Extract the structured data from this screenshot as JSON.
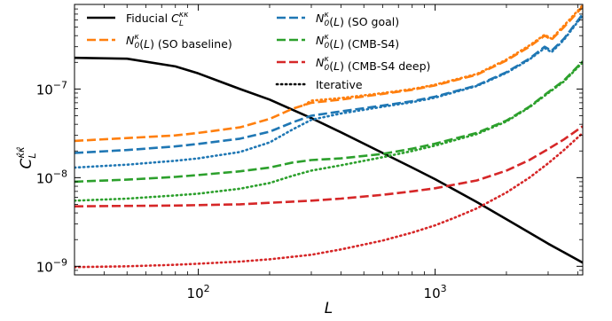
{
  "chart_data": {
    "type": "line",
    "x_scale": "log",
    "y_scale": "log",
    "xlim": [
      30,
      4200
    ],
    "ylim": [
      8e-10,
      9e-07
    ],
    "xlabel": "L",
    "ylabel": "C_L^{κ̂κ̂}",
    "x_ticks": [
      {
        "value": 100,
        "base": "10",
        "exp": "2"
      },
      {
        "value": 1000,
        "base": "10",
        "exp": "3"
      }
    ],
    "y_ticks": [
      {
        "value": 1e-09,
        "base": "10",
        "exp": "−9"
      },
      {
        "value": 1e-08,
        "base": "10",
        "exp": "−8"
      },
      {
        "value": 1e-07,
        "base": "10",
        "exp": "−7"
      }
    ],
    "grid": false,
    "legend_position": "top",
    "legend": [
      {
        "key": "fiducial",
        "label_main": "Fiducial C",
        "sub": "L",
        "sup": "κκ",
        "suffix": "",
        "style": "solid",
        "color": "#000000"
      },
      {
        "key": "so_baseline",
        "label_main": "N",
        "sub": "0",
        "sup": "κ",
        "suffix": "(L) (SO baseline)",
        "style": "dashed",
        "color": "#ff7f0e"
      },
      {
        "key": "so_goal",
        "label_main": "N",
        "sub": "0",
        "sup": "κ",
        "suffix": "(L) (SO goal)",
        "style": "dashed",
        "color": "#1f77b4"
      },
      {
        "key": "cmbs4",
        "label_main": "N",
        "sub": "0",
        "sup": "κ",
        "suffix": "(L) (CMB-S4)",
        "style": "dashed",
        "color": "#2ca02c"
      },
      {
        "key": "cmbs4_deep",
        "label_main": "N",
        "sub": "0",
        "sup": "κ",
        "suffix": "(L) (CMB-S4 deep)",
        "style": "dashed",
        "color": "#d62728"
      },
      {
        "key": "iterative",
        "label_main": "Iterative",
        "sub": "",
        "sup": "",
        "suffix": "",
        "style": "dotted",
        "color": "#000000"
      }
    ],
    "series": [
      {
        "key": "fiducial",
        "style": "solid",
        "color": "#000000",
        "x": [
          30,
          50,
          80,
          100,
          150,
          200,
          300,
          400,
          600,
          800,
          1000,
          1500,
          2000,
          3000,
          4200
        ],
        "y": [
          2.25e-07,
          2.2e-07,
          1.8e-07,
          1.5e-07,
          1e-07,
          7.6e-08,
          4.7e-08,
          3.25e-08,
          1.9e-08,
          1.3e-08,
          9.6e-09,
          5.3e-09,
          3.4e-09,
          1.8e-09,
          1.1e-09
        ]
      },
      {
        "key": "so_baseline",
        "style": "dashed",
        "color": "#ff7f0e",
        "x": [
          30,
          50,
          80,
          100,
          150,
          200,
          250,
          300,
          400,
          600,
          800,
          1000,
          1500,
          2000,
          2500,
          2900,
          3100,
          3500,
          4200
        ],
        "y": [
          2.6e-08,
          2.8e-08,
          3e-08,
          3.2e-08,
          3.7e-08,
          4.6e-08,
          6e-08,
          7e-08,
          7.6e-08,
          8.8e-08,
          9.8e-08,
          1.1e-07,
          1.45e-07,
          2.1e-07,
          3e-07,
          4e-07,
          3.6e-07,
          5e-07,
          8.5e-07
        ]
      },
      {
        "key": "so_baseline_iter",
        "style": "dotted",
        "color": "#ff7f0e",
        "x": [
          280,
          300,
          400,
          600,
          800,
          1000,
          1500,
          2000,
          2500,
          2900,
          3100,
          3500,
          4200
        ],
        "y": [
          6.6e-08,
          7.4e-08,
          7.9e-08,
          9e-08,
          1e-07,
          1.12e-07,
          1.48e-07,
          2.15e-07,
          3.1e-07,
          4.1e-07,
          3.7e-07,
          5.2e-07,
          8.8e-07
        ]
      },
      {
        "key": "so_goal",
        "style": "dashed",
        "color": "#1f77b4",
        "x": [
          30,
          50,
          80,
          100,
          150,
          200,
          250,
          300,
          400,
          600,
          800,
          1000,
          1500,
          2000,
          2500,
          2900,
          3100,
          3500,
          4200
        ],
        "y": [
          1.9e-08,
          2.05e-08,
          2.25e-08,
          2.4e-08,
          2.75e-08,
          3.3e-08,
          4.2e-08,
          5e-08,
          5.6e-08,
          6.5e-08,
          7.3e-08,
          8.2e-08,
          1.1e-07,
          1.55e-07,
          2.2e-07,
          3e-07,
          2.7e-07,
          3.7e-07,
          7e-07
        ]
      },
      {
        "key": "so_goal_iter",
        "style": "dotted",
        "color": "#1f77b4",
        "x": [
          30,
          50,
          80,
          100,
          150,
          200,
          250,
          300,
          400,
          600,
          800,
          1000,
          1500,
          2000,
          2500,
          2900,
          3100,
          3500,
          4200
        ],
        "y": [
          1.3e-08,
          1.4e-08,
          1.55e-08,
          1.65e-08,
          1.95e-08,
          2.5e-08,
          3.5e-08,
          4.5e-08,
          5.3e-08,
          6.3e-08,
          7.1e-08,
          8e-08,
          1.08e-07,
          1.52e-07,
          2.15e-07,
          2.9e-07,
          2.6e-07,
          3.6e-07,
          6.8e-07
        ]
      },
      {
        "key": "cmbs4",
        "style": "dashed",
        "color": "#2ca02c",
        "x": [
          30,
          50,
          80,
          100,
          150,
          200,
          250,
          300,
          400,
          600,
          800,
          1000,
          1500,
          2000,
          2500,
          3000,
          3500,
          4200
        ],
        "y": [
          9e-09,
          9.5e-09,
          1.02e-08,
          1.07e-08,
          1.18e-08,
          1.3e-08,
          1.48e-08,
          1.58e-08,
          1.65e-08,
          1.85e-08,
          2.12e-08,
          2.42e-08,
          3.2e-08,
          4.4e-08,
          6.3e-08,
          9.2e-08,
          1.25e-07,
          2.05e-07
        ]
      },
      {
        "key": "cmbs4_iter",
        "style": "dotted",
        "color": "#2ca02c",
        "x": [
          30,
          50,
          80,
          100,
          150,
          200,
          250,
          300,
          400,
          600,
          800,
          1000,
          1500,
          2000,
          2500,
          3000,
          3500,
          4200
        ],
        "y": [
          5.5e-09,
          5.8e-09,
          6.3e-09,
          6.6e-09,
          7.5e-09,
          8.7e-09,
          1.05e-08,
          1.2e-08,
          1.38e-08,
          1.7e-08,
          2e-08,
          2.3e-08,
          3.1e-08,
          4.3e-08,
          6.2e-08,
          9e-08,
          1.22e-07,
          2e-07
        ]
      },
      {
        "key": "cmbs4_deep",
        "style": "dashed",
        "color": "#d62728",
        "x": [
          30,
          50,
          80,
          100,
          150,
          200,
          300,
          400,
          600,
          800,
          1000,
          1500,
          2000,
          2500,
          3000,
          3500,
          4200
        ],
        "y": [
          4.75e-09,
          4.8e-09,
          4.85e-09,
          4.9e-09,
          5e-09,
          5.2e-09,
          5.5e-09,
          5.8e-09,
          6.4e-09,
          7e-09,
          7.6e-09,
          9.3e-09,
          1.2e-08,
          1.58e-08,
          2.1e-08,
          2.7e-08,
          3.8e-08
        ]
      },
      {
        "key": "cmbs4_deep_iter",
        "style": "dotted",
        "color": "#d62728",
        "x": [
          30,
          50,
          80,
          100,
          150,
          200,
          300,
          400,
          600,
          800,
          1000,
          1200,
          1500,
          2000,
          2500,
          3000,
          3500,
          4200
        ],
        "y": [
          9.8e-10,
          1e-09,
          1.04e-09,
          1.07e-09,
          1.13e-09,
          1.2e-09,
          1.35e-09,
          1.55e-09,
          1.95e-09,
          2.4e-09,
          2.9e-09,
          3.5e-09,
          4.5e-09,
          6.8e-09,
          1e-08,
          1.45e-08,
          2.05e-08,
          3.2e-08
        ]
      }
    ]
  }
}
